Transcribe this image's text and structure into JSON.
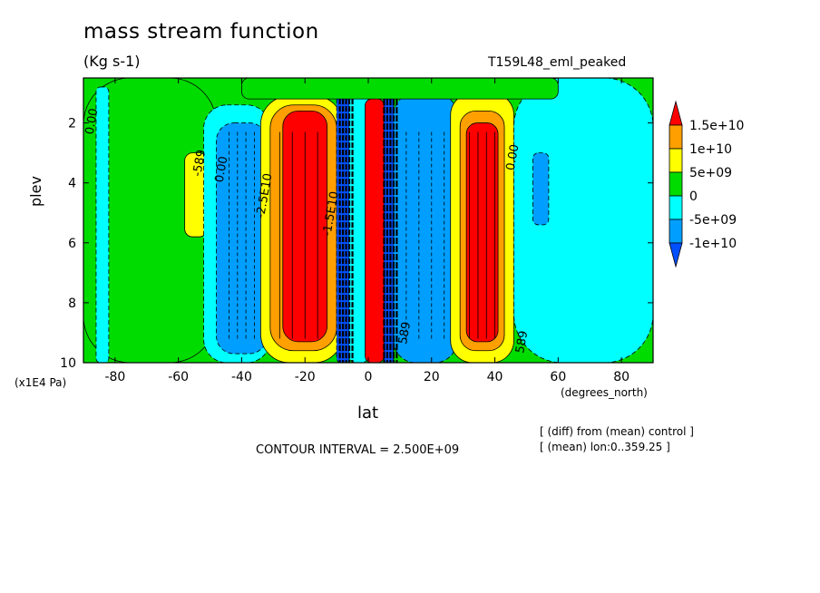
{
  "chart_data": {
    "type": "heatmap",
    "title": "mass stream function",
    "units": "(Kg s-1)",
    "run_name": "T159L48_eml_peaked",
    "xlabel": "lat",
    "x_units": "(degrees_north)",
    "ylabel": "plev",
    "y_units": "(x1E4 Pa)",
    "xlim": [
      -90,
      90
    ],
    "ylim": [
      10,
      0.5
    ],
    "y_reversed": true,
    "x_ticks": [
      "-80",
      "-60",
      "-40",
      "-20",
      "0",
      "20",
      "40",
      "60",
      "80"
    ],
    "y_ticks": [
      "2",
      "4",
      "6",
      "8",
      "10"
    ],
    "contour_interval_text": "CONTOUR INTERVAL = 2.500E+09",
    "notes": [
      "[ (diff) from (mean) control ]",
      "[ (mean) lon:0..359.25 ]"
    ],
    "colorbar": {
      "labels": [
        "1.5e+10",
        "1e+10",
        "5e+09",
        "0",
        "-5e+09",
        "-1e+10"
      ],
      "colors": [
        "#ff0000",
        "#ff9f00",
        "#ffff00",
        "#00dc00",
        "#00ffff",
        "#009fff",
        "#0050ff"
      ]
    },
    "cells": [
      {
        "lat": [
          -90,
          -48
        ],
        "p": [
          0.5,
          10
        ],
        "value": 0
      },
      {
        "lat": [
          -58,
          -51
        ],
        "p": [
          3.0,
          5.8
        ],
        "value": 5000000000.0
      },
      {
        "lat": [
          -86,
          -82
        ],
        "p": [
          0.8,
          10
        ],
        "value": -3000000000.0
      },
      {
        "lat": [
          -52,
          -31
        ],
        "p": [
          1.4,
          10
        ],
        "value": -3000000000.0
      },
      {
        "lat": [
          -48,
          -32
        ],
        "p": [
          2.0,
          9.7
        ],
        "value": -7000000000.0
      },
      {
        "lat": [
          -34,
          -8
        ],
        "p": [
          1.1,
          10
        ],
        "value": 6000000000.0
      },
      {
        "lat": [
          -31,
          -10
        ],
        "p": [
          1.4,
          9.6
        ],
        "value": 12000000000.0
      },
      {
        "lat": [
          -27,
          -13
        ],
        "p": [
          1.6,
          9.3
        ],
        "value": 16000000000.0
      },
      {
        "lat": [
          -10,
          -6
        ],
        "p": [
          1.0,
          10
        ],
        "value": -11000000000.0
      },
      {
        "lat": [
          -6,
          0
        ],
        "p": [
          1.0,
          10
        ],
        "value": -4000000000.0
      },
      {
        "lat": [
          -1,
          5
        ],
        "p": [
          1.2,
          10
        ],
        "value": 16000000000.0
      },
      {
        "lat": [
          5,
          8
        ],
        "p": [
          1.0,
          10
        ],
        "value": -11000000000.0
      },
      {
        "lat": [
          8,
          28
        ],
        "p": [
          1.0,
          10
        ],
        "value": -9000000000.0
      },
      {
        "lat": [
          26,
          46
        ],
        "p": [
          1.0,
          10
        ],
        "value": 7000000000.0
      },
      {
        "lat": [
          29,
          43
        ],
        "p": [
          1.6,
          9.6
        ],
        "value": 13000000000.0
      },
      {
        "lat": [
          31,
          41
        ],
        "p": [
          2.0,
          9.3
        ],
        "value": 16000000000.0
      },
      {
        "lat": [
          46,
          90
        ],
        "p": [
          0.5,
          10
        ],
        "value": -3000000000.0
      },
      {
        "lat": [
          52,
          57
        ],
        "p": [
          3.0,
          5.4
        ],
        "value": -7000000000.0
      },
      {
        "lat": [
          -40,
          60
        ],
        "p": [
          0.5,
          1.2
        ],
        "value": 1000000000.0
      }
    ],
    "contour_labels": [
      "0.00",
      "-589",
      "0.00",
      "-2.5E10",
      "-1.5E10",
      "589",
      "0.00",
      "589"
    ]
  }
}
